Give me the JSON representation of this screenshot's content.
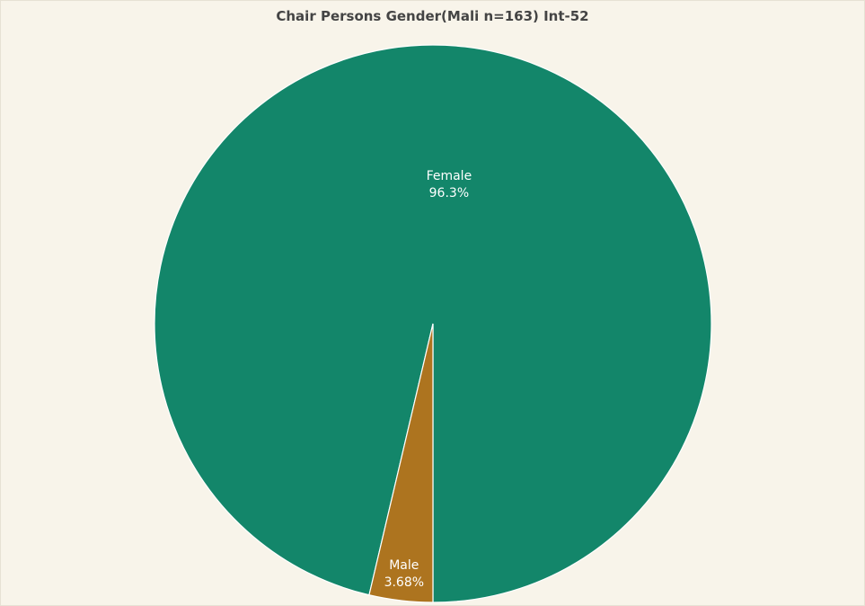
{
  "chart_data": {
    "type": "pie",
    "title": "Chair Persons Gender(Mali n=163) Int-52",
    "slices": [
      {
        "label": "Female",
        "value": 96.3,
        "display": "96.3%",
        "color": "#13866a"
      },
      {
        "label": "Male",
        "value": 3.68,
        "display": "3.68%",
        "color": "#ad741f"
      }
    ],
    "start": "bottom",
    "direction": "counterclockwise",
    "legend": "none"
  }
}
